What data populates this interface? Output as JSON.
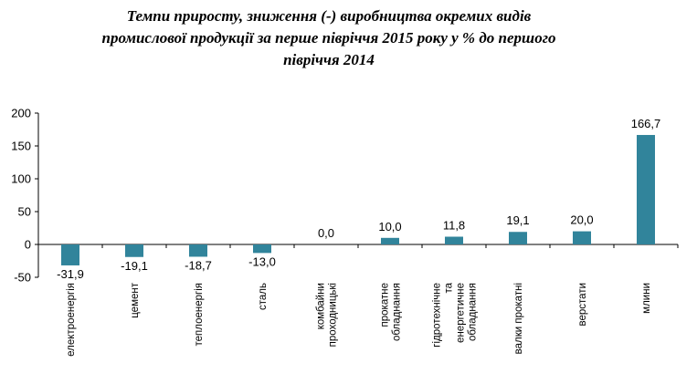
{
  "chart_data": {
    "type": "bar",
    "title_lines": [
      "Темпи приросту, зниження (-) виробництва окремих видів",
      "промислової продукції за перше півріччя 2015 року у % до першого",
      "півріччя 2014"
    ],
    "categories": [
      [
        "електроенергія"
      ],
      [
        "цемент"
      ],
      [
        "теплоенергія"
      ],
      [
        "сталь"
      ],
      [
        "комбайни",
        "проходницькі"
      ],
      [
        "прокатне",
        "обладнання"
      ],
      [
        "гідротехнічне",
        "та",
        "енергетичне",
        "обладнання"
      ],
      [
        "валки прокатні"
      ],
      [
        "верстати"
      ],
      [
        "млини"
      ]
    ],
    "values": [
      -31.9,
      -19.1,
      -18.7,
      -13.0,
      0.0,
      10.0,
      11.8,
      19.1,
      20.0,
      166.7
    ],
    "value_labels": [
      "-31,9",
      "-19,1",
      "-18,7",
      "-13,0",
      "0,0",
      "10,0",
      "11,8",
      "19,1",
      "20,0",
      "166,7"
    ],
    "yticks": [
      "200",
      "150",
      "100",
      "50",
      "0",
      "-50"
    ],
    "ytick_values": [
      200,
      150,
      100,
      50,
      0,
      -50
    ],
    "ylim": [
      -50,
      200
    ],
    "bar_color": "#31849b",
    "grid": false,
    "legend": "none"
  }
}
